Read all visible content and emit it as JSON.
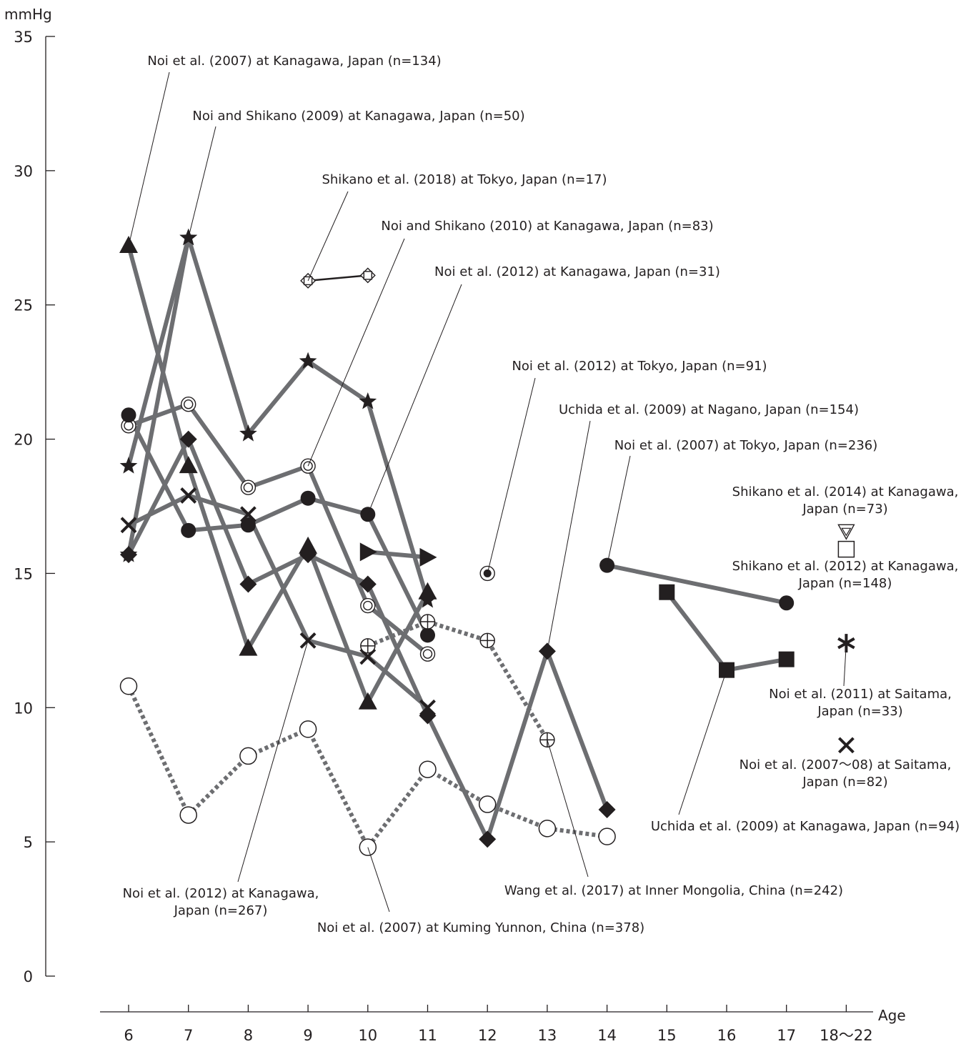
{
  "chart_data": {
    "type": "line",
    "ylabel": "mmHg",
    "xlabel": "Age",
    "ylim": [
      0,
      35
    ],
    "yticks": [
      "0",
      "5",
      "10",
      "15",
      "20",
      "25",
      "30",
      "35"
    ],
    "x_categories": [
      "6",
      "7",
      "8",
      "9",
      "10",
      "11",
      "12",
      "13",
      "14",
      "15",
      "16",
      "17",
      "18〜22"
    ],
    "grid": false,
    "series": [
      {
        "marker": "triangle",
        "line_style": "solid-gray",
        "points": [
          [
            6,
            27.2
          ],
          [
            7,
            19.0
          ],
          [
            8,
            12.2
          ],
          [
            9,
            16.0
          ],
          [
            10,
            10.2
          ],
          [
            11,
            14.3
          ]
        ]
      },
      {
        "marker": "star",
        "line_style": "solid-gray",
        "points": [
          [
            6,
            19.0
          ],
          [
            7,
            27.5
          ],
          [
            8,
            20.2
          ],
          [
            9,
            22.9
          ],
          [
            10,
            21.4
          ],
          [
            11,
            14.0
          ]
        ]
      },
      {
        "marker": "star",
        "line_style": "solid-gray",
        "points": [
          [
            6,
            15.7
          ],
          [
            7,
            27.5
          ]
        ]
      },
      {
        "marker": "double-circle",
        "line_style": "solid-gray",
        "points": [
          [
            6,
            20.5
          ],
          [
            7,
            21.3
          ],
          [
            8,
            18.2
          ],
          [
            9,
            19.0
          ],
          [
            10,
            13.8
          ],
          [
            11,
            12.0
          ]
        ]
      },
      {
        "marker": "filled-circle",
        "line_style": "solid-gray",
        "points": [
          [
            6,
            20.9
          ],
          [
            7,
            16.6
          ],
          [
            8,
            16.8
          ],
          [
            9,
            17.8
          ],
          [
            10,
            17.2
          ],
          [
            11,
            12.7
          ]
        ]
      },
      {
        "marker": "diamond",
        "line_style": "solid-gray",
        "points": [
          [
            6,
            15.7
          ],
          [
            7,
            20.0
          ],
          [
            8,
            14.6
          ],
          [
            9,
            15.7
          ],
          [
            10,
            14.6
          ],
          [
            11,
            9.7
          ],
          [
            12,
            5.1
          ],
          [
            13,
            12.1
          ],
          [
            14,
            6.2
          ]
        ]
      },
      {
        "marker": "x",
        "line_style": "solid-gray",
        "points": [
          [
            6,
            16.8
          ],
          [
            7,
            17.9
          ],
          [
            8,
            17.2
          ],
          [
            9,
            12.5
          ],
          [
            10,
            11.9
          ],
          [
            11,
            10.0
          ]
        ]
      },
      {
        "marker": "right-triangle",
        "line_style": "solid-gray",
        "points": [
          [
            10,
            15.8
          ],
          [
            11,
            15.6
          ]
        ]
      },
      {
        "marker": "circle-plus",
        "line_style": "dotted-gray",
        "points": [
          [
            10,
            12.3
          ],
          [
            11,
            13.2
          ],
          [
            12,
            12.5
          ],
          [
            13,
            8.8
          ]
        ]
      },
      {
        "marker": "open-circle",
        "line_style": "dotted-gray",
        "points": [
          [
            6,
            10.8
          ],
          [
            7,
            6.0
          ],
          [
            8,
            8.2
          ],
          [
            9,
            9.2
          ],
          [
            10,
            4.8
          ],
          [
            11,
            7.7
          ],
          [
            12,
            6.4
          ],
          [
            13,
            5.5
          ],
          [
            14,
            5.2
          ]
        ]
      },
      {
        "marker": "diamond-square",
        "line_style": "solid-black-thin",
        "points": [
          [
            9,
            25.9
          ],
          [
            10,
            26.1
          ]
        ]
      },
      {
        "marker": "dot-circle",
        "line_style": "none",
        "points": [
          [
            12,
            15.0
          ]
        ]
      },
      {
        "marker": "filled-circle",
        "line_style": "solid-gray",
        "points": [
          [
            14,
            15.3
          ],
          [
            17,
            13.9
          ]
        ]
      },
      {
        "marker": "filled-square",
        "line_style": "solid-gray",
        "points": [
          [
            15,
            14.3
          ],
          [
            16,
            11.4
          ],
          [
            17,
            11.8
          ]
        ]
      },
      {
        "marker": "triangle-down-double",
        "line_style": "none",
        "points": [
          [
            18,
            16.6
          ]
        ]
      },
      {
        "marker": "open-square",
        "line_style": "none",
        "points": [
          [
            18,
            15.9
          ]
        ]
      },
      {
        "marker": "asterisk",
        "line_style": "none",
        "points": [
          [
            18,
            12.4
          ]
        ]
      },
      {
        "marker": "x",
        "line_style": "none",
        "points": [
          [
            18,
            8.6
          ]
        ]
      }
    ],
    "annotations": [
      {
        "lines": [
          "Noi et al. (2007) at Kanagawa, Japan (n=134)"
        ],
        "pointer_to": [
          6,
          27.2
        ]
      },
      {
        "lines": [
          "Noi and Shikano (2009) at Kanagawa, Japan (n=50)"
        ],
        "pointer_to": [
          7,
          27.5
        ]
      },
      {
        "lines": [
          "Shikano et al. (2018) at Tokyo, Japan (n=17)"
        ],
        "pointer_to": [
          9,
          25.9
        ]
      },
      {
        "lines": [
          "Noi and Shikano (2010) at Kanagawa, Japan (n=83)"
        ],
        "pointer_to": [
          9,
          19.0
        ]
      },
      {
        "lines": [
          "Noi et al. (2012) at Kanagawa, Japan (n=31)"
        ],
        "pointer_to": [
          10,
          17.2
        ]
      },
      {
        "lines": [
          "Noi et al. (2012) at Tokyo, Japan (n=91)"
        ],
        "pointer_to": [
          12,
          15.0
        ]
      },
      {
        "lines": [
          "Uchida et al. (2009) at Nagano, Japan (n=154)"
        ],
        "pointer_to": [
          13,
          12.1
        ]
      },
      {
        "lines": [
          "Noi et al. (2007) at Tokyo, Japan (n=236)"
        ],
        "pointer_to": [
          14,
          15.3
        ]
      },
      {
        "lines": [
          "Shikano et al. (2014) at Kanagawa,",
          "Japan (n=73)"
        ],
        "pointer_to": null
      },
      {
        "lines": [
          "Shikano et al. (2012) at Kanagawa,",
          "Japan (n=148)"
        ],
        "pointer_to": null
      },
      {
        "lines": [
          "Noi et al. (2011) at Saitama,",
          "Japan (n=33)"
        ],
        "pointer_to": [
          18,
          12.4
        ]
      },
      {
        "lines": [
          "Noi et al. (2007〜08) at Saitama,",
          "Japan (n=82)"
        ],
        "pointer_to": null
      },
      {
        "lines": [
          "Uchida et al. (2009) at Kanagawa, Japan (n=94)"
        ],
        "pointer_to": [
          16,
          11.4
        ]
      },
      {
        "lines": [
          "Wang et al. (2017) at Inner Mongolia, China (n=242)"
        ],
        "pointer_to": [
          13,
          8.8
        ]
      },
      {
        "lines": [
          "Noi et al. (2007) at Kuming Yunnon, China (n=378)"
        ],
        "pointer_to": [
          10,
          4.8
        ]
      },
      {
        "lines": [
          "Noi et al. (2012) at Kanagawa,",
          "Japan (n=267)"
        ],
        "pointer_to": [
          9,
          12.5
        ]
      }
    ]
  }
}
